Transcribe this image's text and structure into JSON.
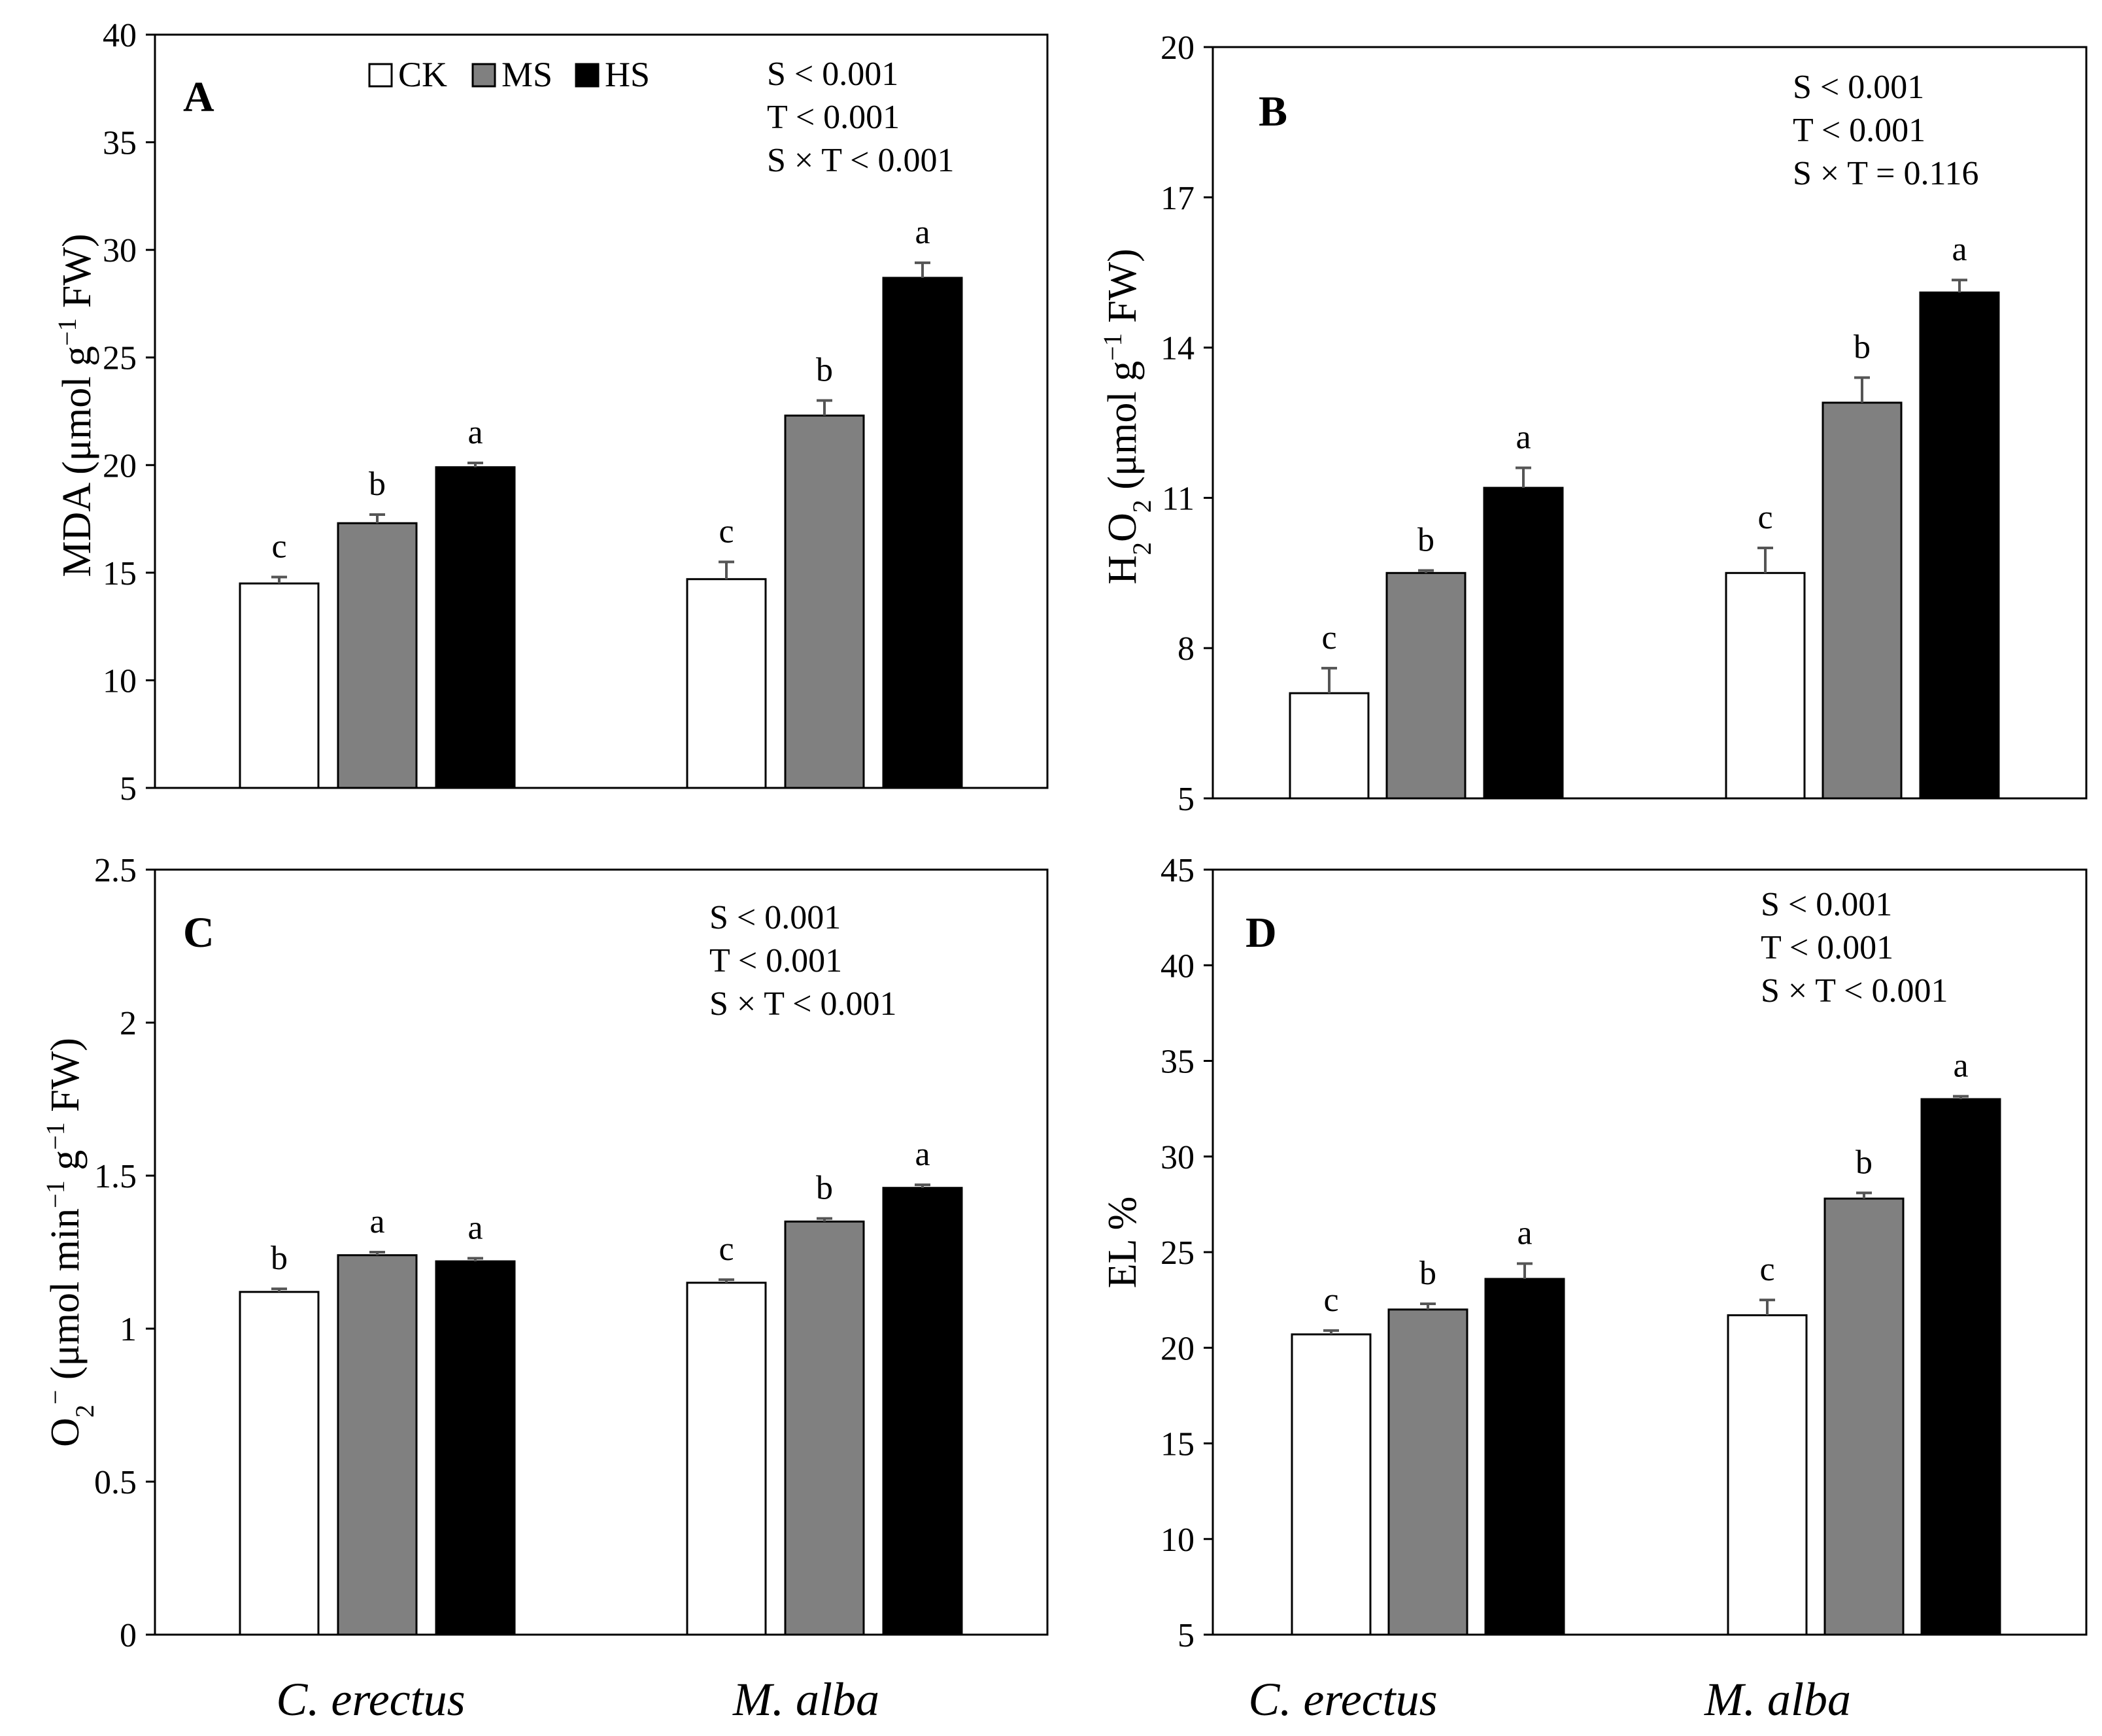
{
  "legend": [
    {
      "label": "CK",
      "color": "#ffffff"
    },
    {
      "label": "MS",
      "color": "#808080"
    },
    {
      "label": "HS",
      "color": "#000000"
    }
  ],
  "groups": [
    "C. erectus",
    "M. alba"
  ],
  "chart_data": [
    {
      "type": "bar",
      "panel_letter": "A",
      "ylabel": {
        "main": "MDA (μmol g",
        "sup": "−1",
        "end": " FW)"
      },
      "ylim": [
        5,
        40
      ],
      "yticks": [
        5,
        10,
        15,
        20,
        25,
        30,
        35,
        40
      ],
      "categories": [
        "C. erectus",
        "M. alba"
      ],
      "series": [
        {
          "name": "CK",
          "values": [
            14.5,
            14.7
          ],
          "errors": [
            0.3,
            0.8
          ],
          "letters": [
            "c",
            "c"
          ]
        },
        {
          "name": "MS",
          "values": [
            17.3,
            22.3
          ],
          "errors": [
            0.4,
            0.7
          ],
          "letters": [
            "b",
            "b"
          ]
        },
        {
          "name": "HS",
          "values": [
            19.9,
            28.7
          ],
          "errors": [
            0.2,
            0.7
          ],
          "letters": [
            "a",
            "a"
          ]
        }
      ],
      "stats": [
        "S < 0.001",
        "T < 0.001",
        "S × T < 0.001"
      ]
    },
    {
      "type": "bar",
      "panel_letter": "B",
      "ylabel": {
        "main": "H",
        "sub1": "2",
        "mid": "O",
        "sub2": "2",
        "rest": " (μmol g",
        "sup": "−1",
        "end": " FW)"
      },
      "ylim": [
        5,
        20
      ],
      "yticks": [
        5,
        8,
        11,
        14,
        17,
        20
      ],
      "categories": [
        "C. erectus",
        "M. alba"
      ],
      "series": [
        {
          "name": "CK",
          "values": [
            7.1,
            9.5
          ],
          "errors": [
            0.5,
            0.5
          ],
          "letters": [
            "c",
            "c"
          ]
        },
        {
          "name": "MS",
          "values": [
            9.5,
            12.9
          ],
          "errors": [
            0.05,
            0.5
          ],
          "letters": [
            "b",
            "b"
          ]
        },
        {
          "name": "HS",
          "values": [
            11.2,
            15.1
          ],
          "errors": [
            0.4,
            0.25
          ],
          "letters": [
            "a",
            "a"
          ]
        }
      ],
      "stats": [
        "S < 0.001",
        "T < 0.001",
        "S × T = 0.116"
      ]
    },
    {
      "type": "bar",
      "panel_letter": "C",
      "ylabel": {
        "main": "O",
        "sub1": "2",
        "sup1": "−",
        "rest": " (μmol min",
        "sup": "−1",
        "mid": " g",
        "sup2": "−1",
        "end": " FW)"
      },
      "ylim": [
        0,
        2.5
      ],
      "yticks": [
        0,
        0.5,
        1,
        1.5,
        2,
        2.5
      ],
      "categories": [
        "C. erectus",
        "M. alba"
      ],
      "series": [
        {
          "name": "CK",
          "values": [
            1.12,
            1.15
          ],
          "errors": [
            0.01,
            0.01
          ],
          "letters": [
            "b",
            "c"
          ]
        },
        {
          "name": "MS",
          "values": [
            1.24,
            1.35
          ],
          "errors": [
            0.01,
            0.01
          ],
          "letters": [
            "a",
            "b"
          ]
        },
        {
          "name": "HS",
          "values": [
            1.22,
            1.46
          ],
          "errors": [
            0.01,
            0.01
          ],
          "letters": [
            "a",
            "a"
          ]
        }
      ],
      "stats": [
        "S < 0.001",
        "T < 0.001",
        "S × T < 0.001"
      ]
    },
    {
      "type": "bar",
      "panel_letter": "D",
      "ylabel": {
        "main": "EL %"
      },
      "ylim": [
        5,
        45
      ],
      "yticks": [
        5,
        10,
        15,
        20,
        25,
        30,
        35,
        40,
        45
      ],
      "categories": [
        "C. erectus",
        "M. alba"
      ],
      "series": [
        {
          "name": "CK",
          "values": [
            20.7,
            21.7
          ],
          "errors": [
            0.2,
            0.8
          ],
          "letters": [
            "c",
            "c"
          ]
        },
        {
          "name": "MS",
          "values": [
            22.0,
            27.8
          ],
          "errors": [
            0.3,
            0.3
          ],
          "letters": [
            "b",
            "b"
          ]
        },
        {
          "name": "HS",
          "values": [
            23.6,
            33.0
          ],
          "errors": [
            0.8,
            0.15
          ],
          "letters": [
            "a",
            "a"
          ]
        }
      ],
      "stats": [
        "S < 0.001",
        "T < 0.001",
        "S × T < 0.001"
      ]
    }
  ]
}
